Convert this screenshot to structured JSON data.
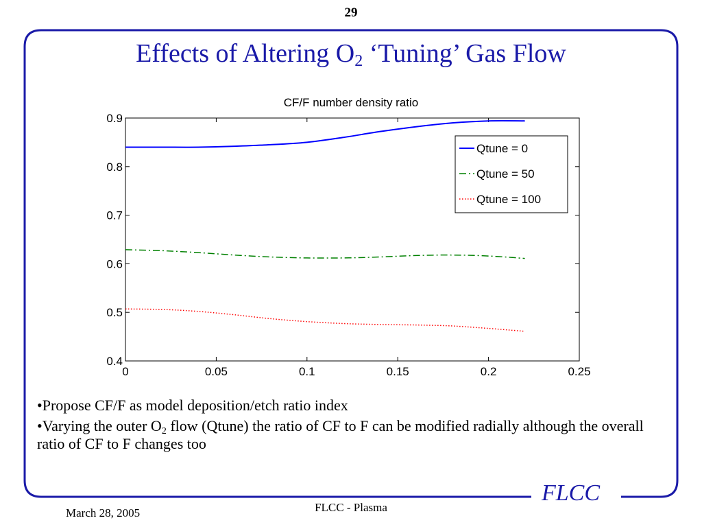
{
  "page_number": "29",
  "title": {
    "main": "Effects of Altering O",
    "sub": "2",
    "rest": " ‘Tuning’ Gas Flow"
  },
  "bullets": [
    {
      "pre": "•Propose CF/F as model deposition/etch ratio index",
      "sub": "",
      "post": ""
    },
    {
      "pre": "•Varying the outer O",
      "sub": "2",
      "post": " flow (Qtune) the ratio of CF to F can be modified radially although the overall ratio of CF to F changes too"
    }
  ],
  "footer": {
    "date": "March 28, 2005",
    "center": "FLCC - Plasma",
    "logo": "FLCC"
  },
  "colors": {
    "frame": "#1a1aa8",
    "title": "#1a1aa8"
  },
  "chart_data": {
    "type": "line",
    "title": "CF/F number density ratio",
    "xlabel": "",
    "ylabel": "",
    "xlim": [
      0,
      0.25
    ],
    "ylim": [
      0.4,
      0.9
    ],
    "xticks": [
      "0",
      "0.05",
      "0.1",
      "0.15",
      "0.2",
      "0.25"
    ],
    "yticks": [
      "0.4",
      "0.5",
      "0.6",
      "0.7",
      "0.8",
      "0.9"
    ],
    "legend_position": "top-right",
    "grid": false,
    "series": [
      {
        "name": "Qtune = 0",
        "color": "#0000ff",
        "style": "solid",
        "x": [
          0,
          0.02,
          0.04,
          0.06,
          0.08,
          0.1,
          0.12,
          0.14,
          0.16,
          0.18,
          0.2,
          0.22
        ],
        "y": [
          0.84,
          0.84,
          0.84,
          0.842,
          0.845,
          0.85,
          0.86,
          0.872,
          0.882,
          0.89,
          0.894,
          0.894
        ]
      },
      {
        "name": "Qtune = 50",
        "color": "#008000",
        "style": "dashdot",
        "x": [
          0,
          0.02,
          0.04,
          0.06,
          0.08,
          0.1,
          0.12,
          0.14,
          0.16,
          0.18,
          0.2,
          0.22
        ],
        "y": [
          0.629,
          0.627,
          0.623,
          0.618,
          0.614,
          0.612,
          0.612,
          0.614,
          0.617,
          0.618,
          0.616,
          0.611
        ]
      },
      {
        "name": "Qtune = 100",
        "color": "#ff0000",
        "style": "dotted",
        "x": [
          0,
          0.02,
          0.04,
          0.06,
          0.08,
          0.1,
          0.12,
          0.14,
          0.16,
          0.18,
          0.2,
          0.22
        ],
        "y": [
          0.507,
          0.506,
          0.502,
          0.495,
          0.487,
          0.481,
          0.477,
          0.475,
          0.474,
          0.472,
          0.467,
          0.461
        ]
      }
    ]
  }
}
